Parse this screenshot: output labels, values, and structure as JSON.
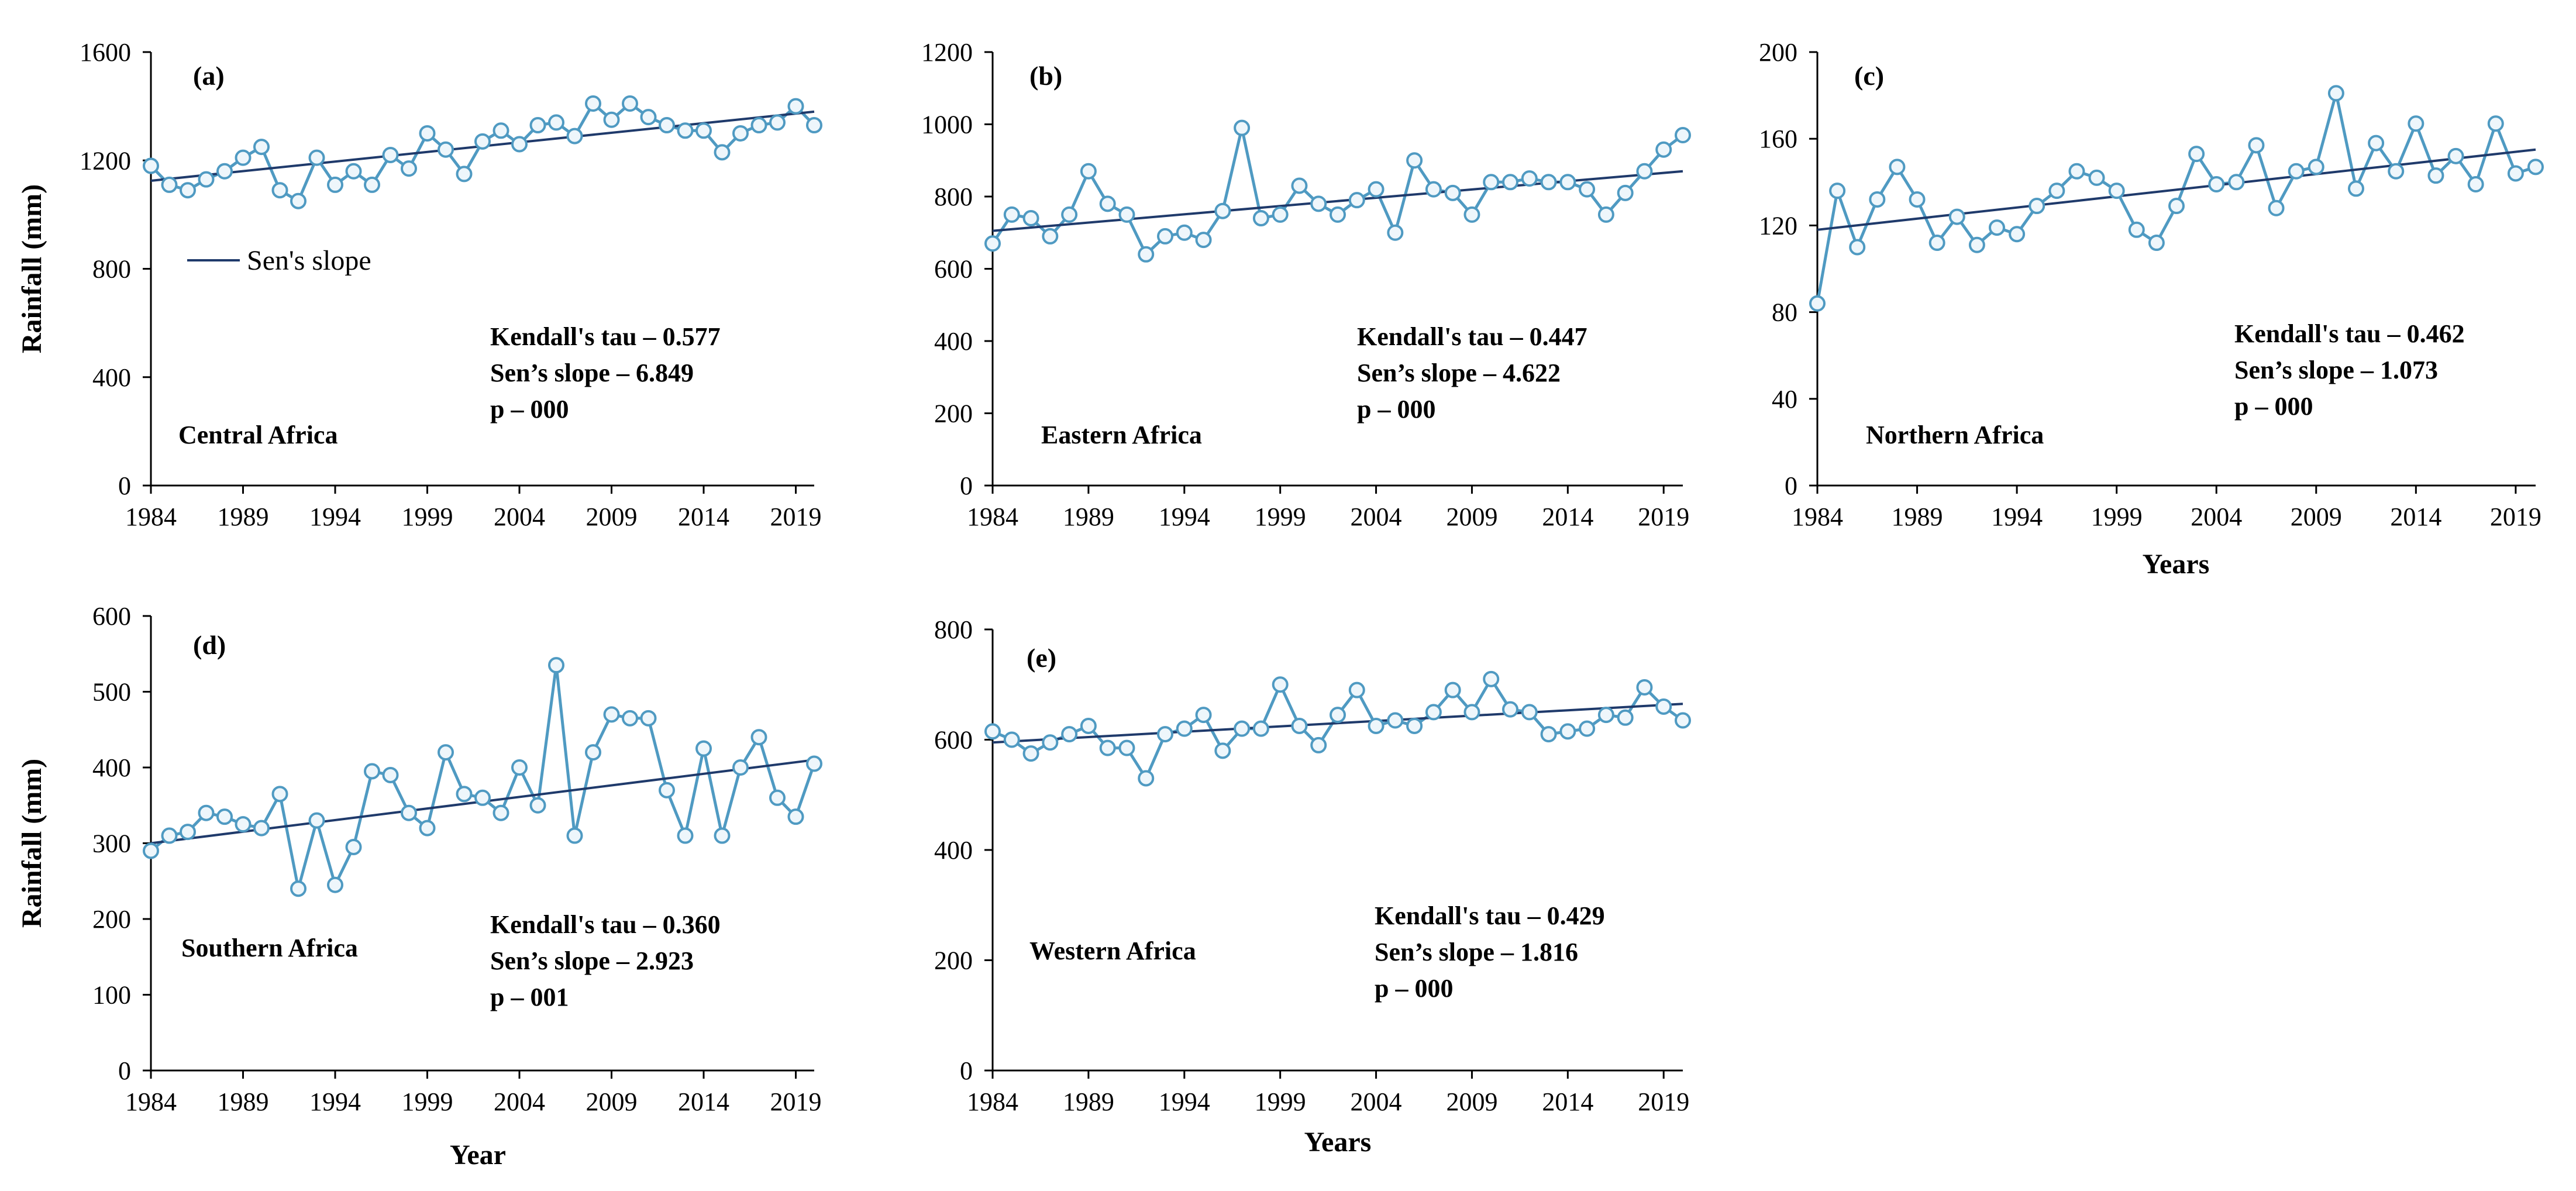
{
  "colors": {
    "series": "#4f9ac2",
    "marker_fill": "#eef6fb",
    "trend": "#1f3a6b",
    "axis": "#000000"
  },
  "chart_data": [
    {
      "type": "line",
      "panel": "(a)",
      "region": "Central Africa",
      "ylabel": "Rainfall (mm)",
      "xlabel": "",
      "ylim": [
        0,
        1600
      ],
      "yticks": [
        0,
        400,
        800,
        1200,
        1600
      ],
      "xlim": [
        1984,
        2020
      ],
      "xticks": [
        1984,
        1989,
        1994,
        1999,
        2004,
        2009,
        2014,
        2019
      ],
      "x": [
        1984,
        1985,
        1986,
        1987,
        1988,
        1989,
        1990,
        1991,
        1992,
        1993,
        1994,
        1995,
        1996,
        1997,
        1998,
        1999,
        2000,
        2001,
        2002,
        2003,
        2004,
        2005,
        2006,
        2007,
        2008,
        2009,
        2010,
        2011,
        2012,
        2013,
        2014,
        2015,
        2016,
        2017,
        2018,
        2019,
        2020
      ],
      "values": [
        1180,
        1110,
        1090,
        1130,
        1160,
        1210,
        1250,
        1090,
        1050,
        1210,
        1110,
        1160,
        1110,
        1220,
        1170,
        1300,
        1240,
        1150,
        1270,
        1310,
        1260,
        1330,
        1340,
        1290,
        1410,
        1350,
        1410,
        1360,
        1330,
        1310,
        1310,
        1230,
        1300,
        1330,
        1340,
        1400,
        1330
      ],
      "trend": {
        "name": "Sen's slope",
        "y_start": 1125,
        "y_end": 1380
      },
      "legend": "Sen's slope",
      "stats": [
        "Kendall's tau – 0.577",
        "Sen’s slope –  6.849",
        "p – 000"
      ]
    },
    {
      "type": "line",
      "panel": "(b)",
      "region": "Eastern Africa",
      "ylabel": "",
      "xlabel": "",
      "ylim": [
        0,
        1200
      ],
      "yticks": [
        0,
        200,
        400,
        600,
        800,
        1000,
        1200
      ],
      "xlim": [
        1984,
        2020
      ],
      "xticks": [
        1984,
        1989,
        1994,
        1999,
        2004,
        2009,
        2014,
        2019
      ],
      "x": [
        1984,
        1985,
        1986,
        1987,
        1988,
        1989,
        1990,
        1991,
        1992,
        1993,
        1994,
        1995,
        1996,
        1997,
        1998,
        1999,
        2000,
        2001,
        2002,
        2003,
        2004,
        2005,
        2006,
        2007,
        2008,
        2009,
        2010,
        2011,
        2012,
        2013,
        2014,
        2015,
        2016,
        2017,
        2018,
        2019,
        2020
      ],
      "values": [
        670,
        750,
        740,
        690,
        750,
        870,
        780,
        750,
        640,
        690,
        700,
        680,
        760,
        990,
        740,
        750,
        830,
        780,
        750,
        790,
        820,
        700,
        900,
        820,
        810,
        750,
        840,
        840,
        850,
        840,
        840,
        820,
        750,
        810,
        870,
        930,
        970
      ],
      "trend": {
        "name": "Sen's slope",
        "y_start": 705,
        "y_end": 870
      },
      "stats": [
        "Kendall's tau – 0.447",
        "Sen’s slope –  4.622",
        "p – 000"
      ]
    },
    {
      "type": "line",
      "panel": "(c)",
      "region": "Northern Africa",
      "ylabel": "",
      "xlabel": "Years",
      "ylim": [
        0,
        200
      ],
      "yticks": [
        0,
        40,
        80,
        120,
        160,
        200
      ],
      "xlim": [
        1984,
        2020
      ],
      "xticks": [
        1984,
        1989,
        1994,
        1999,
        2004,
        2009,
        2014,
        2019
      ],
      "x": [
        1984,
        1985,
        1986,
        1987,
        1988,
        1989,
        1990,
        1991,
        1992,
        1993,
        1994,
        1995,
        1996,
        1997,
        1998,
        1999,
        2000,
        2001,
        2002,
        2003,
        2004,
        2005,
        2006,
        2007,
        2008,
        2009,
        2010,
        2011,
        2012,
        2013,
        2014,
        2015,
        2016,
        2017,
        2018,
        2019,
        2020
      ],
      "values": [
        84,
        136,
        110,
        132,
        147,
        132,
        112,
        124,
        111,
        119,
        116,
        129,
        136,
        145,
        142,
        136,
        118,
        112,
        129,
        153,
        139,
        140,
        157,
        128,
        145,
        147,
        181,
        137,
        158,
        145,
        167,
        143,
        152,
        139,
        167,
        144,
        147
      ],
      "trend": {
        "name": "Sen's slope",
        "y_start": 118,
        "y_end": 155
      },
      "stats": [
        "Kendall's tau – 0.462",
        "Sen’s slope –  1.073",
        "p – 000"
      ]
    },
    {
      "type": "line",
      "panel": "(d)",
      "region": "Southern Africa",
      "ylabel": "Rainfall (mm)",
      "xlabel": "Year",
      "ylim": [
        0,
        600
      ],
      "yticks": [
        0,
        100,
        200,
        300,
        400,
        500,
        600
      ],
      "xlim": [
        1984,
        2020
      ],
      "xticks": [
        1984,
        1989,
        1994,
        1999,
        2004,
        2009,
        2014,
        2019
      ],
      "x": [
        1984,
        1985,
        1986,
        1987,
        1988,
        1989,
        1990,
        1991,
        1992,
        1993,
        1994,
        1995,
        1996,
        1997,
        1998,
        1999,
        2000,
        2001,
        2002,
        2003,
        2004,
        2005,
        2006,
        2007,
        2008,
        2009,
        2010,
        2011,
        2012,
        2013,
        2014,
        2015,
        2016,
        2017,
        2018,
        2019,
        2020
      ],
      "values": [
        290,
        310,
        315,
        340,
        335,
        325,
        320,
        365,
        240,
        330,
        245,
        295,
        395,
        390,
        340,
        320,
        420,
        365,
        360,
        340,
        400,
        350,
        535,
        310,
        420,
        470,
        465,
        465,
        370,
        310,
        425,
        310,
        400,
        440,
        360,
        335,
        405
      ],
      "trend": {
        "name": "Sen's slope",
        "y_start": 300,
        "y_end": 410
      },
      "stats": [
        "Kendall's tau – 0.360",
        "Sen’s slope – 2.923",
        "p – 001"
      ]
    },
    {
      "type": "line",
      "panel": "(e)",
      "region": "Western Africa",
      "ylabel": "",
      "xlabel": "Years",
      "ylim": [
        0,
        800
      ],
      "yticks": [
        0,
        200,
        400,
        600,
        800
      ],
      "xlim": [
        1984,
        2020
      ],
      "xticks": [
        1984,
        1989,
        1994,
        1999,
        2004,
        2009,
        2014,
        2019
      ],
      "x": [
        1984,
        1985,
        1986,
        1987,
        1988,
        1989,
        1990,
        1991,
        1992,
        1993,
        1994,
        1995,
        1996,
        1997,
        1998,
        1999,
        2000,
        2001,
        2002,
        2003,
        2004,
        2005,
        2006,
        2007,
        2008,
        2009,
        2010,
        2011,
        2012,
        2013,
        2014,
        2015,
        2016,
        2017,
        2018,
        2019,
        2020
      ],
      "values": [
        615,
        600,
        575,
        595,
        610,
        625,
        585,
        585,
        530,
        610,
        620,
        645,
        580,
        620,
        620,
        700,
        625,
        590,
        645,
        690,
        625,
        635,
        625,
        650,
        690,
        650,
        710,
        655,
        650,
        610,
        615,
        620,
        645,
        640,
        695,
        660,
        635
      ],
      "trend": {
        "name": "Sen's slope",
        "y_start": 595,
        "y_end": 665
      },
      "stats": [
        "Kendall's tau – 0.429",
        "Sen’s slope – 1.816",
        "p – 000"
      ]
    }
  ]
}
